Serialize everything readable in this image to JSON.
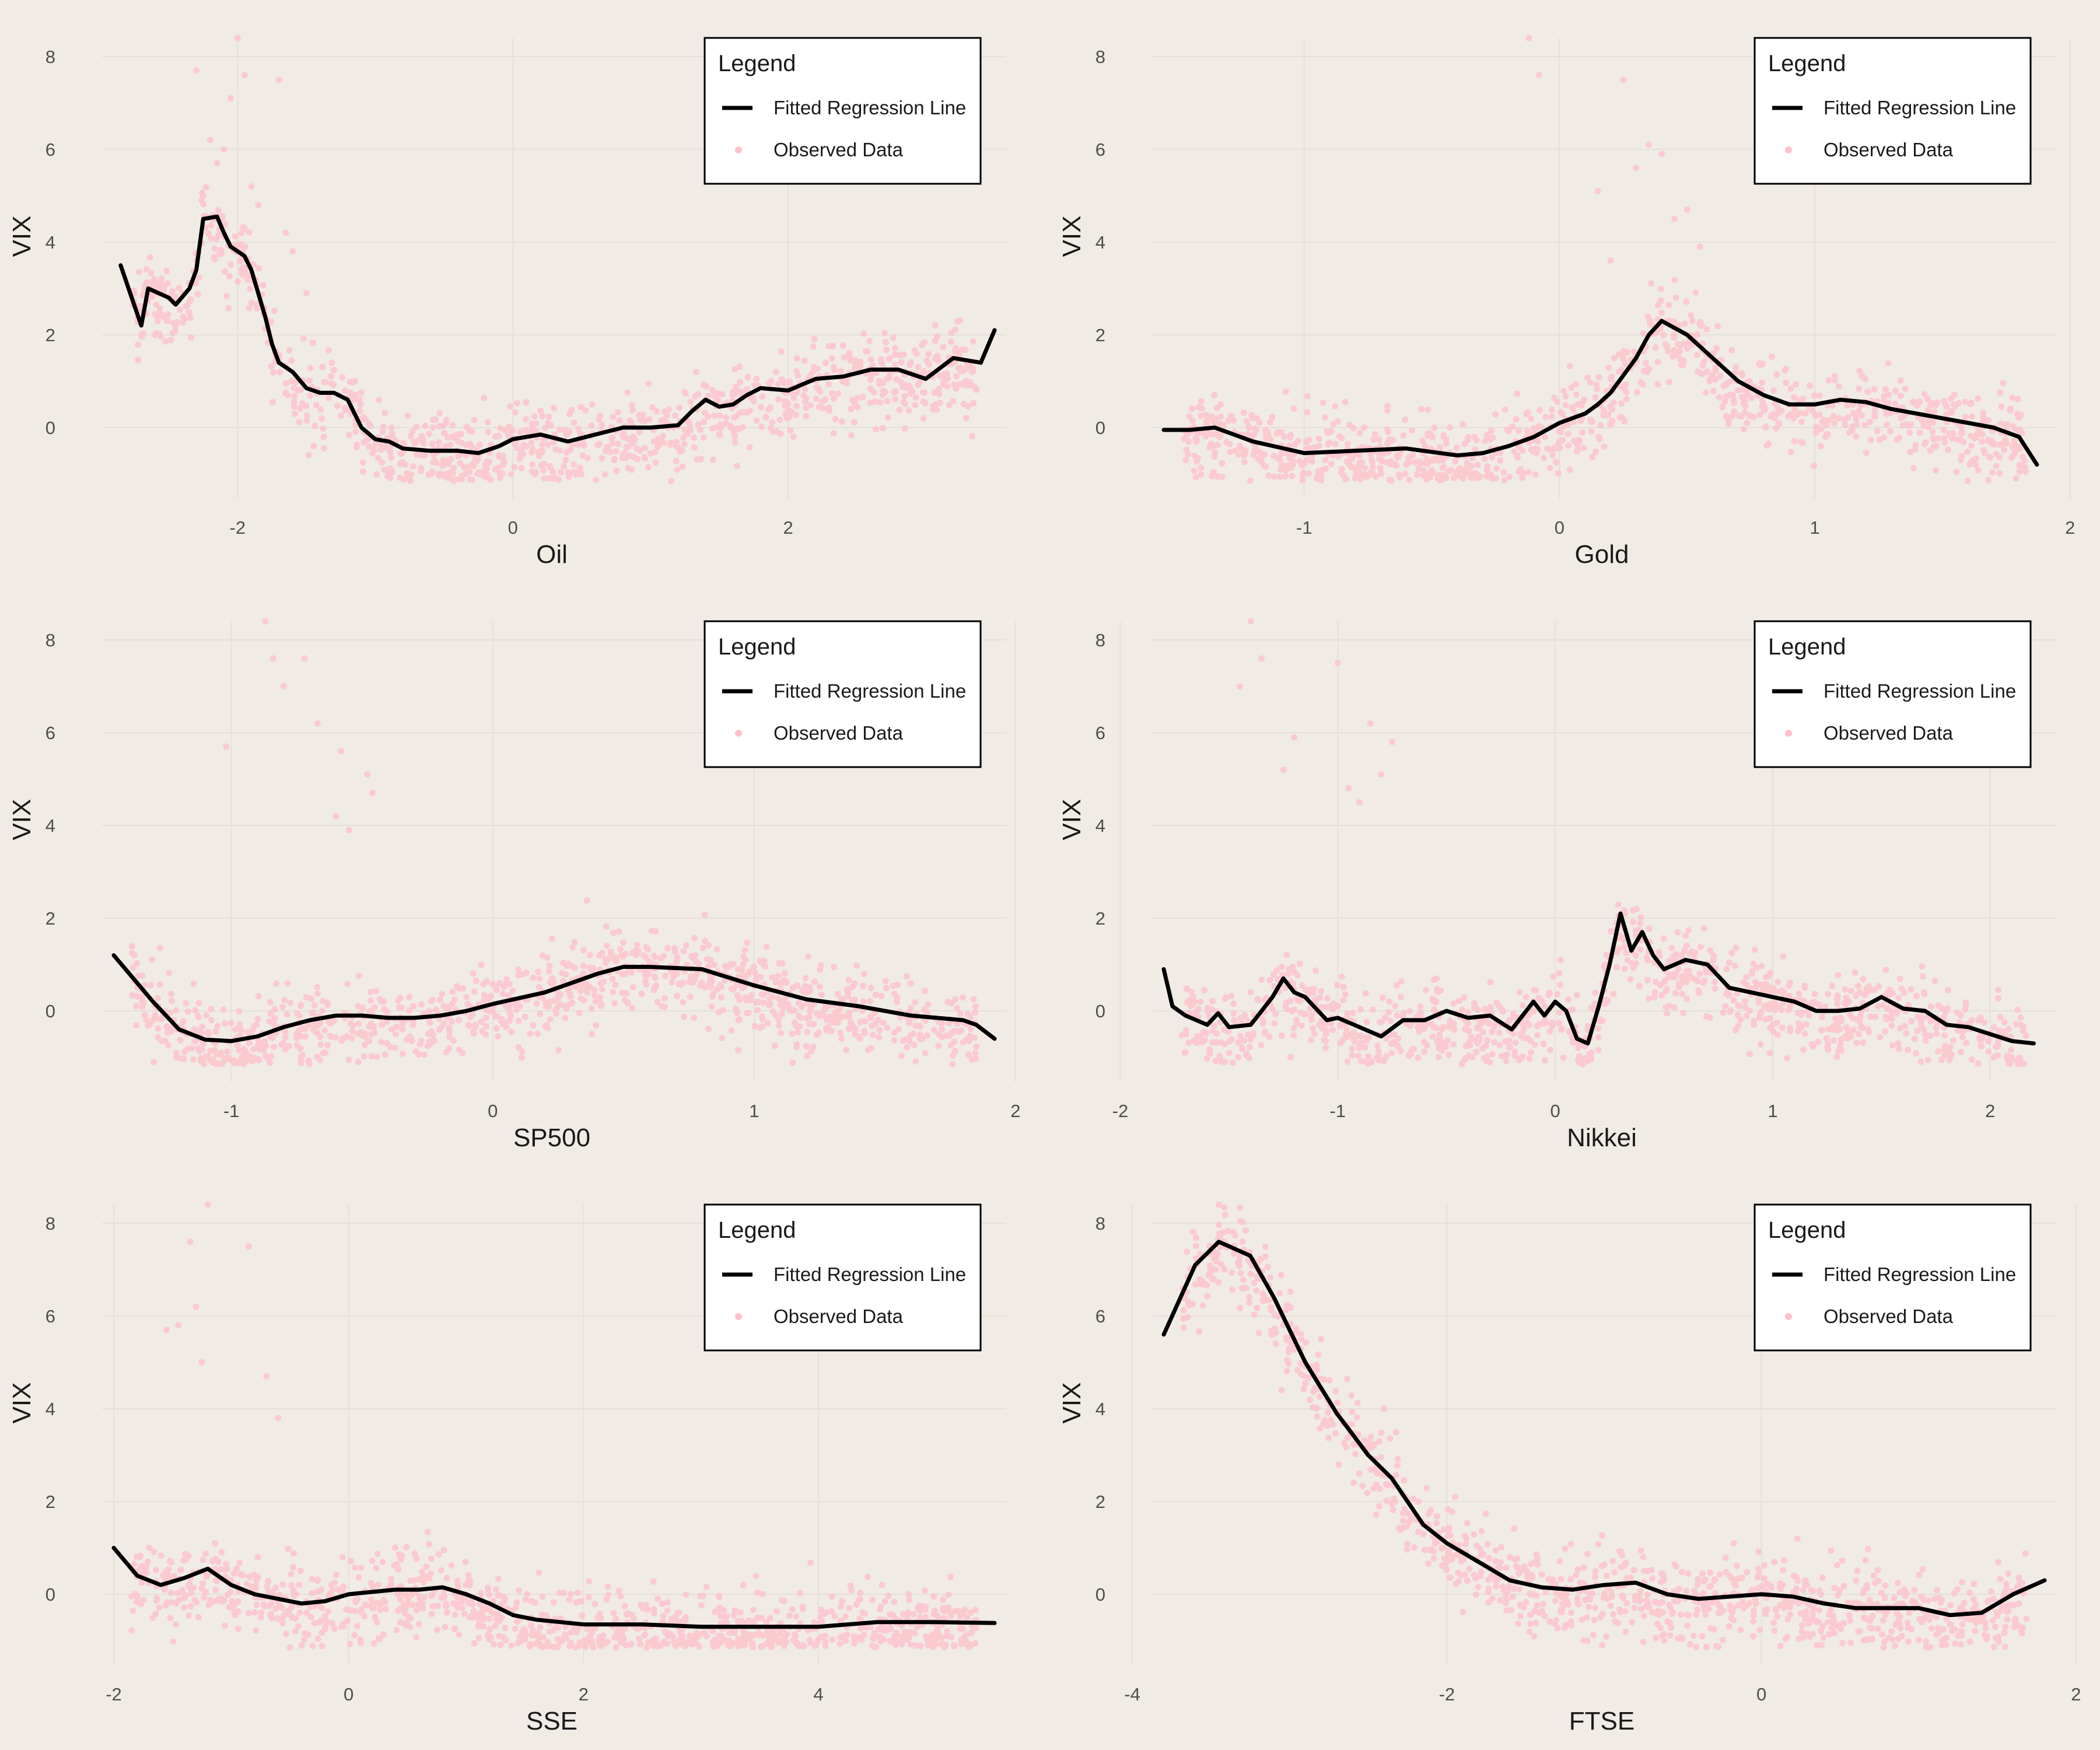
{
  "colors": {
    "background": "#f0ebe5",
    "points": "#ffc0cb",
    "line": "#000000",
    "grid": "#e6e0d9",
    "legend_bg": "#ffffff"
  },
  "chart_data": [
    {
      "type": "scatter",
      "title": "",
      "xlabel": "Oil",
      "ylabel": "VIX",
      "xlim": [
        -2.9,
        3.5
      ],
      "ylim": [
        -1.3,
        8.7
      ],
      "xticks": [
        -2,
        0,
        2
      ],
      "yticks": [
        0,
        2,
        4,
        6,
        8
      ],
      "legend": {
        "title": "Legend",
        "position": "top-right",
        "items": [
          "Fitted Regression Line",
          "Observed Data"
        ]
      },
      "series": [
        {
          "name": "Fitted Regression Line",
          "kind": "line",
          "x": [
            -2.85,
            -2.7,
            -2.65,
            -2.5,
            -2.45,
            -2.35,
            -2.3,
            -2.25,
            -2.15,
            -2.1,
            -2.05,
            -1.95,
            -1.9,
            -1.85,
            -1.8,
            -1.75,
            -1.7,
            -1.6,
            -1.5,
            -1.4,
            -1.3,
            -1.2,
            -1.1,
            -1.0,
            -0.9,
            -0.8,
            -0.6,
            -0.4,
            -0.25,
            -0.1,
            0.0,
            0.2,
            0.4,
            0.6,
            0.8,
            1.0,
            1.2,
            1.3,
            1.4,
            1.5,
            1.6,
            1.7,
            1.8,
            2.0,
            2.2,
            2.4,
            2.6,
            2.8,
            3.0,
            3.2,
            3.4,
            3.5
          ],
          "y": [
            3.5,
            2.2,
            3.0,
            2.8,
            2.65,
            3.0,
            3.4,
            4.5,
            4.55,
            4.2,
            3.9,
            3.7,
            3.4,
            2.9,
            2.4,
            1.8,
            1.4,
            1.2,
            0.85,
            0.75,
            0.75,
            0.6,
            0.0,
            -0.25,
            -0.3,
            -0.45,
            -0.5,
            -0.5,
            -0.55,
            -0.4,
            -0.25,
            -0.15,
            -0.3,
            -0.15,
            0.0,
            0.0,
            0.05,
            0.35,
            0.6,
            0.45,
            0.5,
            0.7,
            0.85,
            0.8,
            1.05,
            1.1,
            1.25,
            1.25,
            1.05,
            1.5,
            1.4,
            2.1
          ]
        },
        {
          "name": "Observed Data",
          "kind": "scatter",
          "n": 1100,
          "x": [
            -2.6,
            -2.3,
            -2.25,
            -2.2,
            -2.15,
            -2.1,
            -2.05,
            -2.0,
            -1.95,
            -1.9,
            -1.85,
            -1.7,
            -1.65,
            -1.6,
            -1.5,
            -2.7,
            -2.6,
            -2.5,
            -2.4
          ],
          "y": [
            2.0,
            7.7,
            5.0,
            6.2,
            5.7,
            6.0,
            7.1,
            8.4,
            7.6,
            5.2,
            4.8,
            7.5,
            4.2,
            3.8,
            2.9,
            2.0,
            3.0,
            2.8,
            2.9
          ]
        }
      ]
    },
    {
      "type": "scatter",
      "title": "",
      "xlabel": "Gold",
      "ylabel": "VIX",
      "xlim": [
        -1.55,
        1.9
      ],
      "ylim": [
        -1.3,
        8.7
      ],
      "xticks": [
        -1,
        0,
        1,
        2
      ],
      "yticks": [
        0,
        2,
        4,
        6,
        8
      ],
      "legend": {
        "title": "Legend",
        "position": "top-right",
        "items": [
          "Fitted Regression Line",
          "Observed Data"
        ]
      },
      "series": [
        {
          "name": "Fitted Regression Line",
          "kind": "line",
          "x": [
            -1.55,
            -1.45,
            -1.35,
            -1.2,
            -1.0,
            -0.8,
            -0.6,
            -0.4,
            -0.3,
            -0.2,
            -0.1,
            0.0,
            0.1,
            0.15,
            0.2,
            0.3,
            0.35,
            0.4,
            0.5,
            0.6,
            0.7,
            0.8,
            0.9,
            1.0,
            1.1,
            1.2,
            1.3,
            1.4,
            1.5,
            1.6,
            1.7,
            1.8,
            1.87
          ],
          "y": [
            -0.05,
            -0.05,
            0.0,
            -0.3,
            -0.55,
            -0.5,
            -0.45,
            -0.6,
            -0.55,
            -0.4,
            -0.2,
            0.1,
            0.3,
            0.5,
            0.75,
            1.5,
            2.0,
            2.3,
            2.0,
            1.5,
            1.0,
            0.7,
            0.5,
            0.5,
            0.6,
            0.55,
            0.4,
            0.3,
            0.2,
            0.1,
            0.0,
            -0.2,
            -0.8
          ]
        },
        {
          "name": "Observed Data",
          "kind": "scatter",
          "n": 1100,
          "x": [
            -0.12,
            -0.08,
            0.25,
            0.3,
            0.35,
            0.4,
            0.45,
            0.5,
            0.15,
            0.2,
            0.55
          ],
          "y": [
            8.4,
            7.6,
            7.5,
            5.6,
            6.1,
            5.9,
            4.5,
            4.7,
            5.1,
            3.6,
            3.9
          ]
        }
      ]
    },
    {
      "type": "scatter",
      "title": "",
      "xlabel": "SP500",
      "ylabel": "VIX",
      "xlim": [
        -1.45,
        1.92
      ],
      "ylim": [
        -1.3,
        8.7
      ],
      "xticks": [
        -1,
        0,
        1,
        2
      ],
      "yticks": [
        0,
        2,
        4,
        6,
        8
      ],
      "legend": {
        "title": "Legend",
        "position": "top-right",
        "items": [
          "Fitted Regression Line",
          "Observed Data"
        ]
      },
      "series": [
        {
          "name": "Fitted Regression Line",
          "kind": "line",
          "x": [
            -1.45,
            -1.3,
            -1.2,
            -1.1,
            -1.0,
            -0.9,
            -0.8,
            -0.7,
            -0.6,
            -0.5,
            -0.4,
            -0.3,
            -0.2,
            -0.1,
            0.0,
            0.2,
            0.4,
            0.5,
            0.6,
            0.8,
            1.0,
            1.2,
            1.4,
            1.6,
            1.8,
            1.85,
            1.92
          ],
          "y": [
            1.2,
            0.2,
            -0.4,
            -0.62,
            -0.65,
            -0.55,
            -0.35,
            -0.2,
            -0.1,
            -0.1,
            -0.15,
            -0.15,
            -0.1,
            0.0,
            0.15,
            0.4,
            0.8,
            0.95,
            0.95,
            0.9,
            0.55,
            0.25,
            0.1,
            -0.1,
            -0.2,
            -0.3,
            -0.6
          ]
        },
        {
          "name": "Observed Data",
          "kind": "scatter",
          "n": 1100,
          "x": [
            -0.87,
            -0.84,
            -0.8,
            -0.72,
            -0.67,
            -0.58,
            -0.48,
            -0.46,
            -1.02,
            -0.6,
            -0.55
          ],
          "y": [
            8.4,
            7.6,
            7.0,
            7.6,
            6.2,
            5.6,
            5.1,
            4.7,
            5.7,
            4.2,
            3.9
          ]
        }
      ]
    },
    {
      "type": "scatter",
      "title": "",
      "xlabel": "Nikkei",
      "ylabel": "VIX",
      "xlim": [
        -1.8,
        2.25
      ],
      "ylim": [
        -1.3,
        8.7
      ],
      "xticks": [
        -2,
        -1,
        0,
        1,
        2
      ],
      "yticks": [
        0,
        2,
        4,
        6,
        8
      ],
      "legend": {
        "title": "Legend",
        "position": "top-right",
        "items": [
          "Fitted Regression Line",
          "Observed Data"
        ]
      },
      "series": [
        {
          "name": "Fitted Regression Line",
          "kind": "line",
          "x": [
            -1.8,
            -1.76,
            -1.7,
            -1.6,
            -1.55,
            -1.5,
            -1.4,
            -1.35,
            -1.3,
            -1.25,
            -1.2,
            -1.15,
            -1.1,
            -1.05,
            -1.0,
            -0.9,
            -0.8,
            -0.7,
            -0.6,
            -0.5,
            -0.4,
            -0.3,
            -0.2,
            -0.1,
            -0.05,
            0.0,
            0.05,
            0.1,
            0.15,
            0.2,
            0.25,
            0.3,
            0.35,
            0.4,
            0.45,
            0.5,
            0.6,
            0.7,
            0.8,
            0.9,
            1.0,
            1.1,
            1.2,
            1.3,
            1.4,
            1.5,
            1.6,
            1.7,
            1.8,
            1.9,
            2.0,
            2.1,
            2.2
          ],
          "y": [
            0.9,
            0.1,
            -0.1,
            -0.3,
            -0.05,
            -0.35,
            -0.3,
            0.0,
            0.3,
            0.7,
            0.4,
            0.3,
            0.05,
            -0.2,
            -0.15,
            -0.35,
            -0.55,
            -0.2,
            -0.2,
            0.0,
            -0.15,
            -0.1,
            -0.4,
            0.2,
            -0.1,
            0.2,
            0.0,
            -0.6,
            -0.7,
            0.1,
            1.0,
            2.1,
            1.3,
            1.7,
            1.2,
            0.9,
            1.1,
            1.0,
            0.5,
            0.4,
            0.3,
            0.2,
            0.0,
            0.0,
            0.05,
            0.3,
            0.05,
            0.0,
            -0.3,
            -0.35,
            -0.5,
            -0.65,
            -0.7
          ]
        },
        {
          "name": "Observed Data",
          "kind": "scatter",
          "n": 1100,
          "x": [
            -1.4,
            -1.35,
            -1.45,
            -1.2,
            -1.25,
            -1.0,
            -0.85,
            -0.8,
            -0.75,
            -0.95,
            -0.9
          ],
          "y": [
            8.4,
            7.6,
            7.0,
            5.9,
            5.2,
            7.5,
            6.2,
            5.1,
            5.8,
            4.8,
            4.5
          ]
        }
      ]
    },
    {
      "type": "scatter",
      "title": "",
      "xlabel": "SSE",
      "ylabel": "VIX",
      "xlim": [
        -2.0,
        5.5
      ],
      "ylim": [
        -1.3,
        8.7
      ],
      "xticks": [
        -2,
        0,
        2,
        4
      ],
      "yticks": [
        0,
        2,
        4,
        6,
        8
      ],
      "legend": {
        "title": "Legend",
        "position": "top-right",
        "items": [
          "Fitted Regression Line",
          "Observed Data"
        ]
      },
      "series": [
        {
          "name": "Fitted Regression Line",
          "kind": "line",
          "x": [
            -2.0,
            -1.8,
            -1.6,
            -1.4,
            -1.2,
            -1.0,
            -0.8,
            -0.6,
            -0.4,
            -0.2,
            0.0,
            0.2,
            0.4,
            0.6,
            0.8,
            1.0,
            1.2,
            1.4,
            1.6,
            2.0,
            2.5,
            3.0,
            3.5,
            4.0,
            4.5,
            5.0,
            5.5
          ],
          "y": [
            1.0,
            0.4,
            0.2,
            0.35,
            0.55,
            0.2,
            0.0,
            -0.1,
            -0.2,
            -0.15,
            0.0,
            0.05,
            0.1,
            0.1,
            0.15,
            0.0,
            -0.2,
            -0.45,
            -0.55,
            -0.65,
            -0.65,
            -0.7,
            -0.7,
            -0.7,
            -0.6,
            -0.6,
            -0.62
          ]
        },
        {
          "name": "Observed Data",
          "kind": "scatter",
          "n": 1100,
          "x": [
            -1.2,
            -1.35,
            -1.3,
            -1.25,
            -0.85,
            -1.45,
            -1.55,
            -0.7,
            -0.6
          ],
          "y": [
            8.4,
            7.6,
            6.2,
            5.0,
            7.5,
            5.8,
            5.7,
            4.7,
            3.8
          ]
        }
      ]
    },
    {
      "type": "scatter",
      "title": "",
      "xlabel": "FTSE",
      "ylabel": "VIX",
      "xlim": [
        -3.8,
        1.8
      ],
      "ylim": [
        -1.3,
        8.7
      ],
      "xticks": [
        -4,
        -2,
        0,
        2
      ],
      "yticks": [
        0,
        2,
        4,
        6,
        8
      ],
      "legend": {
        "title": "Legend",
        "position": "top-right",
        "items": [
          "Fitted Regression Line",
          "Observed Data"
        ]
      },
      "series": [
        {
          "name": "Fitted Regression Line",
          "kind": "line",
          "x": [
            -3.8,
            -3.6,
            -3.45,
            -3.25,
            -3.1,
            -2.9,
            -2.7,
            -2.5,
            -2.35,
            -2.15,
            -2.0,
            -1.8,
            -1.6,
            -1.4,
            -1.2,
            -1.0,
            -0.8,
            -0.6,
            -0.4,
            -0.2,
            0.0,
            0.2,
            0.4,
            0.6,
            0.8,
            1.0,
            1.2,
            1.4,
            1.6,
            1.8
          ],
          "y": [
            5.6,
            7.1,
            7.6,
            7.3,
            6.4,
            5.0,
            3.9,
            3.0,
            2.5,
            1.5,
            1.1,
            0.7,
            0.3,
            0.15,
            0.1,
            0.2,
            0.25,
            0.0,
            -0.1,
            -0.05,
            0.0,
            -0.05,
            -0.2,
            -0.3,
            -0.3,
            -0.3,
            -0.45,
            -0.4,
            0.0,
            0.3
          ]
        },
        {
          "name": "Observed Data",
          "kind": "scatter",
          "n": 1100,
          "x": [
            -3.45,
            -3.3,
            -3.2,
            -3.0,
            -2.8,
            -2.4,
            -3.55,
            -3.5
          ],
          "y": [
            8.4,
            7.6,
            7.0,
            6.2,
            5.5,
            4.0,
            7.3,
            7.0
          ]
        }
      ]
    }
  ]
}
